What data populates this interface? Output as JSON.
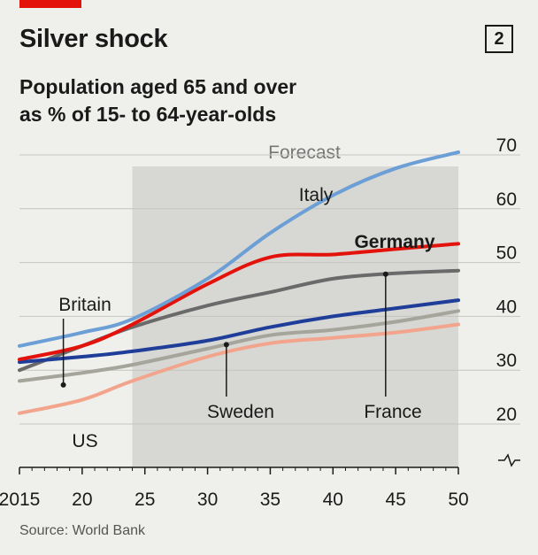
{
  "header": {
    "title": "Silver shock",
    "chart_number": "2",
    "subtitle_line1": "Population aged 65 and over",
    "subtitle_line2": "as % of 15- to 64-year-olds"
  },
  "footer": {
    "source": "Source: World Bank"
  },
  "chart_data": {
    "type": "line",
    "title": "Silver shock",
    "subtitle": "Population aged 65 and over as % of 15- to 64-year-olds",
    "xlabel": "",
    "ylabel": "",
    "xlim": [
      2015,
      2050
    ],
    "ylim": [
      15,
      70
    ],
    "y_axis_side": "right",
    "y_axis_break": true,
    "grid": true,
    "x_ticks": [
      2015,
      2020,
      2025,
      2030,
      2035,
      2040,
      2045,
      2050
    ],
    "x_tick_labels": [
      "2015",
      "20",
      "25",
      "30",
      "35",
      "40",
      "45",
      "50"
    ],
    "y_ticks": [
      20,
      30,
      40,
      50,
      60,
      70
    ],
    "y_tick_labels": [
      "20",
      "30",
      "40",
      "50",
      "60",
      "70"
    ],
    "forecast": {
      "start": 2024,
      "end": 2050,
      "label": "Forecast",
      "color": "#d7d7d3"
    },
    "x": [
      2015,
      2020,
      2024,
      2030,
      2035,
      2040,
      2045,
      2050
    ],
    "series": [
      {
        "name": "Italy",
        "color": "#6b9fd6",
        "values": [
          34.5,
          37,
          39.5,
          47,
          55.5,
          62.5,
          67.5,
          70.5
        ]
      },
      {
        "name": "Germany",
        "color": "#e3120b",
        "values": [
          32,
          34.5,
          38.5,
          46,
          51,
          51.5,
          52.5,
          53.5
        ]
      },
      {
        "name": "France",
        "color": "#6a6a6a",
        "values": [
          30,
          34.5,
          38,
          42,
          44.5,
          47,
          48,
          48.5
        ]
      },
      {
        "name": "Britain",
        "color": "#1f3e99",
        "values": [
          31.5,
          32.5,
          33.5,
          35.5,
          38,
          40,
          41.5,
          43
        ]
      },
      {
        "name": "Sweden",
        "color": "#a5a59b",
        "values": [
          28,
          29.5,
          31,
          34,
          36.5,
          37.5,
          39,
          41
        ]
      },
      {
        "name": "US",
        "color": "#f3a48c",
        "values": [
          22,
          24.5,
          28,
          32.5,
          35,
          36,
          37,
          38.5
        ]
      }
    ],
    "annotations": [
      {
        "series": "Italy",
        "text": "Italy",
        "bold": false
      },
      {
        "series": "Germany",
        "text": "Germany",
        "bold": true
      },
      {
        "series": "Britain",
        "text": "Britain",
        "bold": false,
        "leader_x": 2018.5
      },
      {
        "series": "Sweden",
        "text": "Sweden",
        "bold": false,
        "leader_x": 2031.5
      },
      {
        "series": "France",
        "text": "France",
        "bold": false,
        "leader_x": 2044.2
      },
      {
        "series": "US",
        "text": "US",
        "bold": false
      }
    ]
  }
}
